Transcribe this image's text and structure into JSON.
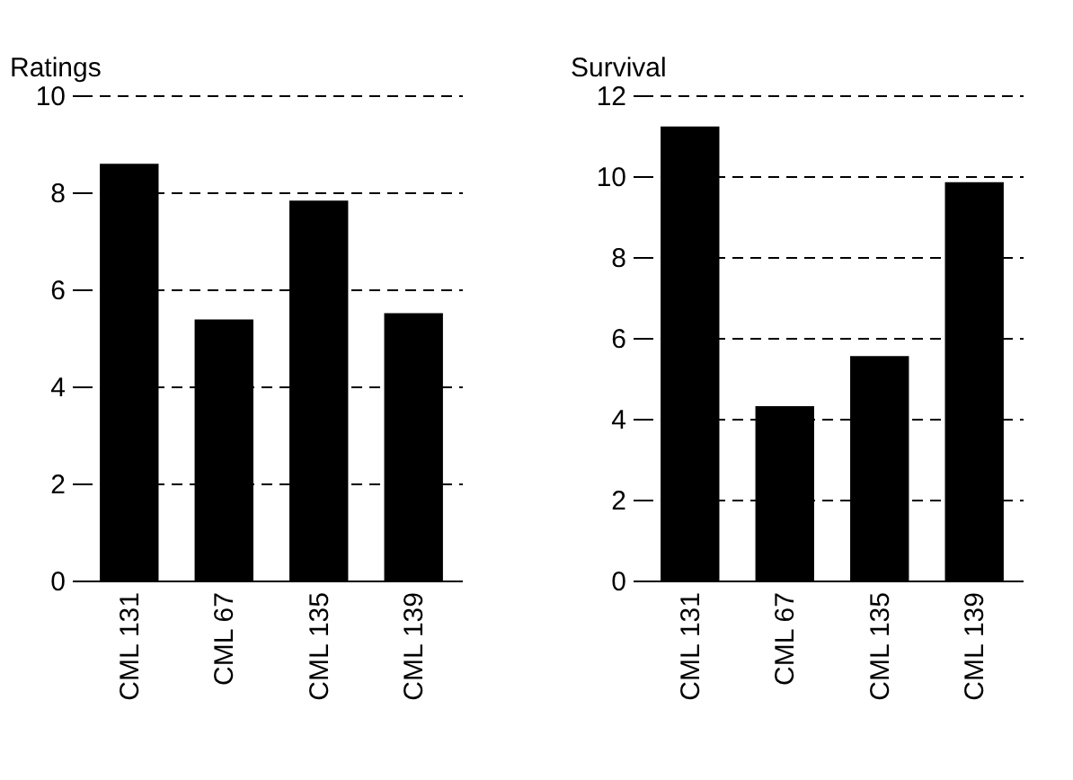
{
  "chart_data": [
    {
      "type": "bar",
      "ylabel": "Ratings",
      "categories": [
        "CML 131",
        "CML 67",
        "CML 135",
        "CML 139"
      ],
      "values": [
        8.59,
        5.38,
        7.83,
        5.51
      ],
      "color": "#000000",
      "ylim": [
        0,
        10
      ],
      "yticks": [
        0,
        2,
        4,
        6,
        8,
        10
      ],
      "grid": "y"
    },
    {
      "type": "bar",
      "ylabel": "Survival",
      "categories": [
        "CML 131",
        "CML 67",
        "CML 135",
        "CML 139"
      ],
      "values": [
        11.23,
        4.31,
        5.55,
        9.85
      ],
      "color": "#000000",
      "ylim": [
        0,
        12
      ],
      "yticks": [
        0,
        2,
        4,
        6,
        8,
        10,
        12
      ],
      "grid": "y"
    }
  ]
}
